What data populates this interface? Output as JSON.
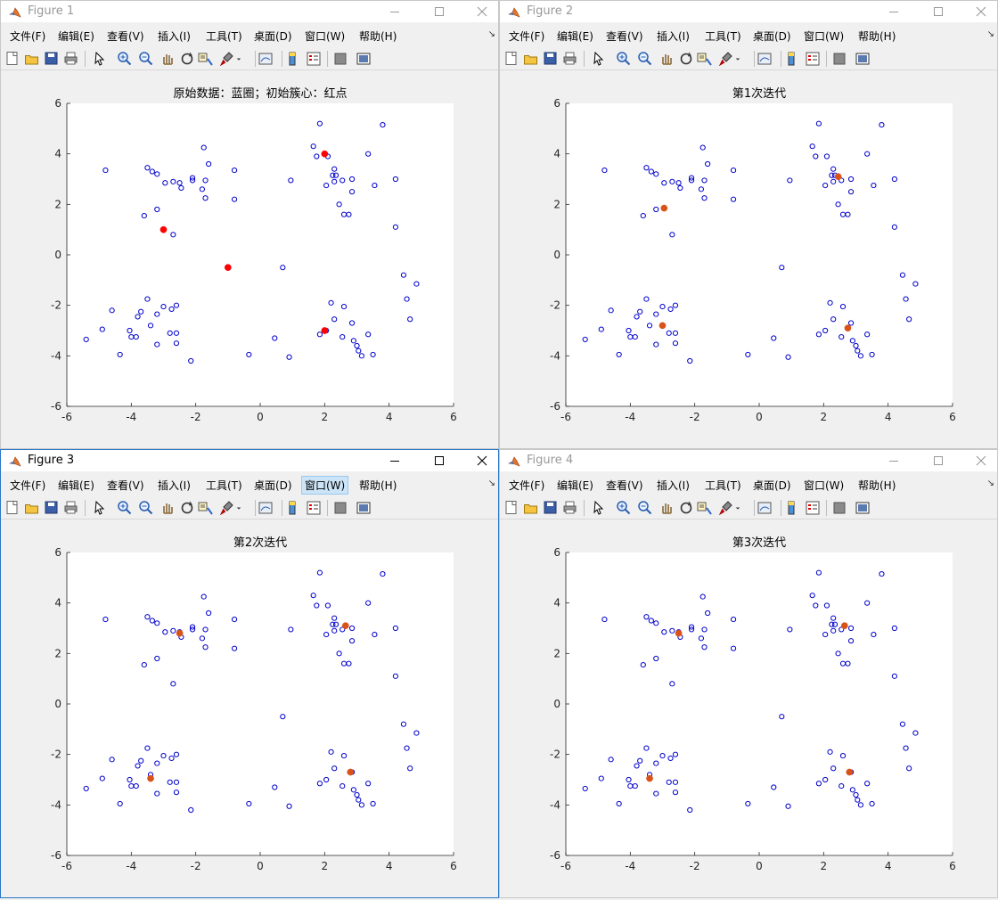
{
  "colors": {
    "data_marker": "#0000cc",
    "initial_center": "#ff0000",
    "center": "#d95319",
    "axes_bg": "#ffffff",
    "figure_bg": "#f0f0f0"
  },
  "menu_items": [
    "文件(F)",
    "编辑(E)",
    "查看(V)",
    "插入(I)",
    "工具(T)",
    "桌面(D)",
    "窗口(W)",
    "帮助(H)"
  ],
  "menu_overflow": "↘",
  "toolbar_icons": [
    "new-figure-icon",
    "open-file-icon",
    "save-icon",
    "print-icon",
    "edit-plot-icon",
    "zoom-in-icon",
    "zoom-out-icon",
    "pan-icon",
    "rotate-3d-icon",
    "data-cursor-icon",
    "brush-icon",
    "brush-dropdown-icon",
    "link-plot-icon",
    "insert-colorbar-icon",
    "insert-legend-icon",
    "hide-plot-tools-icon",
    "show-plot-tools-icon"
  ],
  "window_buttons": [
    "minimize-icon",
    "maximize-icon",
    "close-icon"
  ],
  "figures": [
    {
      "title": "Figure 1",
      "active": false,
      "highlight_menu": -1,
      "plot_title": "原始数据：蓝圈；初始簇心：红点",
      "center_color": "#ff0000"
    },
    {
      "title": "Figure 2",
      "active": false,
      "highlight_menu": -1,
      "plot_title": "第1次迭代",
      "center_color": "#d95319"
    },
    {
      "title": "Figure 3",
      "active": true,
      "highlight_menu": 6,
      "plot_title": "第2次迭代",
      "center_color": "#d95319"
    },
    {
      "title": "Figure 4",
      "active": false,
      "highlight_menu": -1,
      "plot_title": "第3次迭代",
      "center_color": "#d95319"
    }
  ],
  "chart_data": [
    {
      "type": "scatter",
      "title": "原始数据：蓝圈；初始簇心：红点",
      "xlim": [
        -6,
        6
      ],
      "ylim": [
        -6,
        6
      ],
      "xticks": [
        -6,
        -4,
        -2,
        0,
        2,
        4,
        6
      ],
      "yticks": [
        -6,
        -4,
        -2,
        0,
        2,
        4,
        6
      ],
      "xlabel": "",
      "ylabel": "",
      "points": [
        [
          -4.8,
          3.35
        ],
        [
          -3.5,
          3.45
        ],
        [
          -3.35,
          3.3
        ],
        [
          -3.2,
          3.2
        ],
        [
          -2.95,
          2.85
        ],
        [
          -2.7,
          2.9
        ],
        [
          -2.5,
          2.85
        ],
        [
          -2.45,
          2.65
        ],
        [
          -2.1,
          3.05
        ],
        [
          -2.1,
          2.95
        ],
        [
          -1.8,
          2.6
        ],
        [
          -1.7,
          2.25
        ],
        [
          -1.7,
          2.95
        ],
        [
          -1.75,
          4.25
        ],
        [
          -1.6,
          3.6
        ],
        [
          -0.8,
          3.35
        ],
        [
          -0.8,
          2.2
        ],
        [
          -3.2,
          1.8
        ],
        [
          -3.6,
          1.55
        ],
        [
          -2.7,
          0.8
        ],
        [
          1.65,
          4.3
        ],
        [
          1.85,
          5.2
        ],
        [
          1.75,
          3.9
        ],
        [
          2.1,
          3.9
        ],
        [
          2.3,
          3.4
        ],
        [
          2.35,
          3.15
        ],
        [
          2.25,
          3.15
        ],
        [
          2.3,
          2.9
        ],
        [
          2.05,
          2.75
        ],
        [
          2.55,
          2.95
        ],
        [
          2.85,
          3.0
        ],
        [
          3.35,
          4.0
        ],
        [
          3.8,
          5.15
        ],
        [
          2.45,
          2.0
        ],
        [
          2.6,
          1.6
        ],
        [
          2.75,
          1.6
        ],
        [
          2.85,
          2.5
        ],
        [
          3.55,
          2.75
        ],
        [
          4.2,
          3.0
        ],
        [
          4.2,
          1.1
        ],
        [
          0.95,
          2.95
        ],
        [
          -5.4,
          -3.35
        ],
        [
          -4.9,
          -2.95
        ],
        [
          -4.6,
          -2.2
        ],
        [
          -4.35,
          -3.95
        ],
        [
          -4.05,
          -3.0
        ],
        [
          -4.0,
          -3.25
        ],
        [
          -3.85,
          -3.25
        ],
        [
          -3.8,
          -2.45
        ],
        [
          -3.7,
          -2.25
        ],
        [
          -3.5,
          -1.75
        ],
        [
          -3.4,
          -2.8
        ],
        [
          -3.2,
          -2.35
        ],
        [
          -3.2,
          -3.55
        ],
        [
          -3.0,
          -2.05
        ],
        [
          -2.8,
          -3.1
        ],
        [
          -2.75,
          -2.15
        ],
        [
          -2.6,
          -2.0
        ],
        [
          -2.6,
          -3.1
        ],
        [
          -2.6,
          -3.5
        ],
        [
          -2.15,
          -4.2
        ],
        [
          -0.35,
          -3.95
        ],
        [
          0.45,
          -3.3
        ],
        [
          0.9,
          -4.05
        ],
        [
          0.7,
          -0.5
        ],
        [
          1.85,
          -3.15
        ],
        [
          2.05,
          -3.0
        ],
        [
          2.2,
          -1.9
        ],
        [
          2.3,
          -2.55
        ],
        [
          2.55,
          -3.25
        ],
        [
          2.6,
          -2.05
        ],
        [
          2.85,
          -2.7
        ],
        [
          2.9,
          -3.4
        ],
        [
          3.0,
          -3.6
        ],
        [
          3.05,
          -3.8
        ],
        [
          3.15,
          -4.0
        ],
        [
          3.35,
          -3.15
        ],
        [
          3.5,
          -3.95
        ],
        [
          4.45,
          -0.8
        ],
        [
          4.55,
          -1.75
        ],
        [
          4.65,
          -2.55
        ],
        [
          4.85,
          -1.15
        ]
      ],
      "centers": [
        [
          2.0,
          4.0
        ],
        [
          -3.0,
          1.0
        ],
        [
          -1.0,
          -0.5
        ],
        [
          2.0,
          -3.0
        ]
      ]
    },
    {
      "type": "scatter",
      "title": "第1次迭代",
      "xlim": [
        -6,
        6
      ],
      "ylim": [
        -6,
        6
      ],
      "xticks": [
        -6,
        -4,
        -2,
        0,
        2,
        4,
        6
      ],
      "yticks": [
        -6,
        -4,
        -2,
        0,
        2,
        4,
        6
      ],
      "xlabel": "",
      "ylabel": "",
      "points": "same as figure 1",
      "centers": [
        [
          2.45,
          3.1
        ],
        [
          -2.95,
          1.85
        ],
        [
          -3.0,
          -2.8
        ],
        [
          2.75,
          -2.9
        ]
      ]
    },
    {
      "type": "scatter",
      "title": "第2次迭代",
      "xlim": [
        -6,
        6
      ],
      "ylim": [
        -6,
        6
      ],
      "xticks": [
        -6,
        -4,
        -2,
        0,
        2,
        4,
        6
      ],
      "yticks": [
        -6,
        -4,
        -2,
        0,
        2,
        4,
        6
      ],
      "xlabel": "",
      "ylabel": "",
      "points": "same as figure 1",
      "centers": [
        [
          2.65,
          3.1
        ],
        [
          -2.5,
          2.8
        ],
        [
          -3.4,
          -2.95
        ],
        [
          2.8,
          -2.7
        ]
      ]
    },
    {
      "type": "scatter",
      "title": "第3次迭代",
      "xlim": [
        -6,
        6
      ],
      "ylim": [
        -6,
        6
      ],
      "xticks": [
        -6,
        -4,
        -2,
        0,
        2,
        4,
        6
      ],
      "yticks": [
        -6,
        -4,
        -2,
        0,
        2,
        4,
        6
      ],
      "xlabel": "",
      "ylabel": "",
      "points": "same as figure 1",
      "centers": [
        [
          2.65,
          3.1
        ],
        [
          -2.5,
          2.8
        ],
        [
          -3.4,
          -2.95
        ],
        [
          2.8,
          -2.7
        ]
      ]
    }
  ]
}
